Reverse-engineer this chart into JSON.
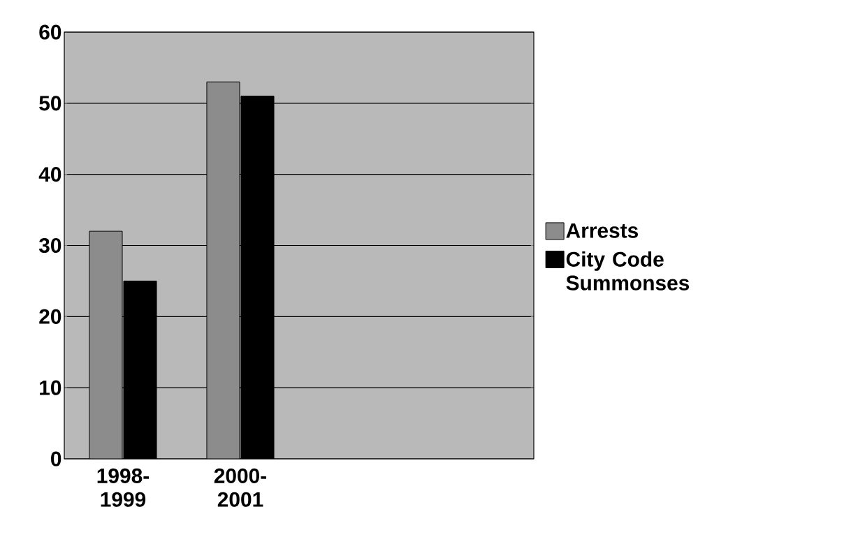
{
  "chart_data": {
    "type": "bar",
    "categories": [
      "1998-1999",
      "2000-2001",
      null,
      null
    ],
    "series": [
      {
        "name": "Arrests",
        "color": "#8c8c8c",
        "values": [
          32,
          53,
          null,
          null
        ]
      },
      {
        "name": "City Code Summonses",
        "color": "#000000",
        "values": [
          25,
          51,
          null,
          null
        ]
      }
    ],
    "ylim": [
      0,
      60
    ],
    "yticks": [
      0,
      10,
      20,
      30,
      40,
      50,
      60
    ],
    "grid": "y",
    "legend": "right"
  }
}
